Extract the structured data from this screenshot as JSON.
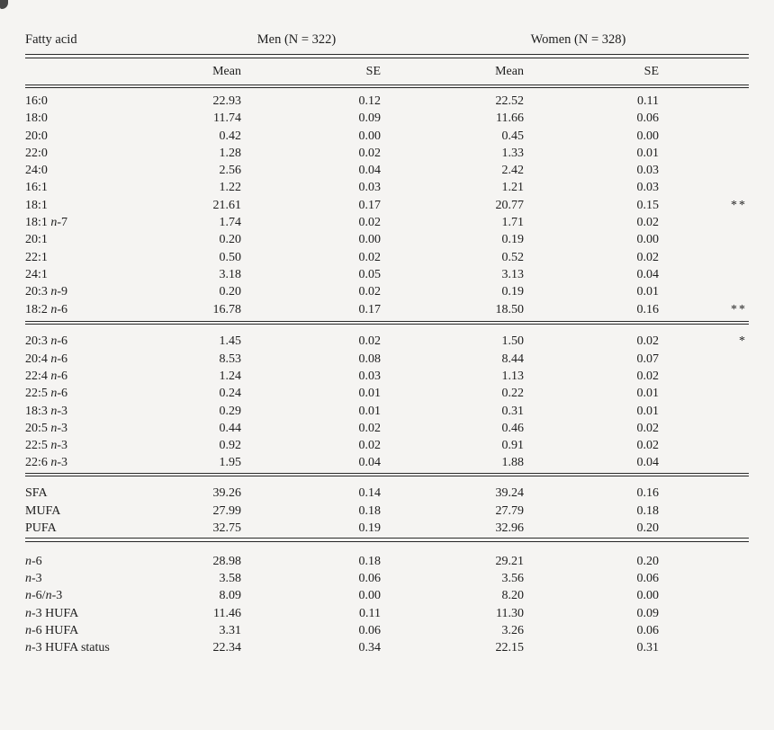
{
  "page": {
    "background": "#f5f4f2",
    "text_color": "#1d1d1d",
    "rule_color": "#2b2b2b"
  },
  "table": {
    "header": {
      "col1": "Fatty acid",
      "groups": [
        {
          "label": "Men (N = 322)"
        },
        {
          "label": "Women (N = 328)"
        }
      ],
      "subheaders": [
        "Mean",
        "SE",
        "Mean",
        "SE"
      ]
    },
    "sections": [
      {
        "rows": [
          {
            "label": [
              [
                "16:0",
                0
              ]
            ],
            "values": [
              "22.93",
              "0.12",
              "22.52",
              "0.11"
            ],
            "sig": ""
          },
          {
            "label": [
              [
                "18:0",
                0
              ]
            ],
            "values": [
              "11.74",
              "0.09",
              "11.66",
              "0.06"
            ],
            "sig": ""
          },
          {
            "label": [
              [
                "20:0",
                0
              ]
            ],
            "values": [
              "0.42",
              "0.00",
              "0.45",
              "0.00"
            ],
            "sig": ""
          },
          {
            "label": [
              [
                "22:0",
                0
              ]
            ],
            "values": [
              "1.28",
              "0.02",
              "1.33",
              "0.01"
            ],
            "sig": ""
          },
          {
            "label": [
              [
                "24:0",
                0
              ]
            ],
            "values": [
              "2.56",
              "0.04",
              "2.42",
              "0.03"
            ],
            "sig": ""
          },
          {
            "label": [
              [
                "16:1",
                0
              ]
            ],
            "values": [
              "1.22",
              "0.03",
              "1.21",
              "0.03"
            ],
            "sig": ""
          },
          {
            "label": [
              [
                "18:1",
                0
              ]
            ],
            "values": [
              "21.61",
              "0.17",
              "20.77",
              "0.15"
            ],
            "sig": "**"
          },
          {
            "label": [
              [
                "18:1 ",
                0
              ],
              [
                "n",
                1
              ],
              [
                "-7",
                0
              ]
            ],
            "values": [
              "1.74",
              "0.02",
              "1.71",
              "0.02"
            ],
            "sig": ""
          },
          {
            "label": [
              [
                "20:1",
                0
              ]
            ],
            "values": [
              "0.20",
              "0.00",
              "0.19",
              "0.00"
            ],
            "sig": ""
          },
          {
            "label": [
              [
                "22:1",
                0
              ]
            ],
            "values": [
              "0.50",
              "0.02",
              "0.52",
              "0.02"
            ],
            "sig": ""
          },
          {
            "label": [
              [
                "24:1",
                0
              ]
            ],
            "values": [
              "3.18",
              "0.05",
              "3.13",
              "0.04"
            ],
            "sig": ""
          },
          {
            "label": [
              [
                "20:3 ",
                0
              ],
              [
                "n",
                1
              ],
              [
                "-9",
                0
              ]
            ],
            "values": [
              "0.20",
              "0.02",
              "0.19",
              "0.01"
            ],
            "sig": ""
          },
          {
            "label": [
              [
                "18:2 ",
                0
              ],
              [
                "n",
                1
              ],
              [
                "-6",
                0
              ]
            ],
            "values": [
              "16.78",
              "0.17",
              "18.50",
              "0.16"
            ],
            "sig": "**"
          }
        ]
      },
      {
        "rows": [
          {
            "label": [
              [
                "20:3 ",
                0
              ],
              [
                "n",
                1
              ],
              [
                "-6",
                0
              ]
            ],
            "values": [
              "1.45",
              "0.02",
              "1.50",
              "0.02"
            ],
            "sig": "*"
          },
          {
            "label": [
              [
                "20:4 ",
                0
              ],
              [
                "n",
                1
              ],
              [
                "-6",
                0
              ]
            ],
            "values": [
              "8.53",
              "0.08",
              "8.44",
              "0.07"
            ],
            "sig": ""
          },
          {
            "label": [
              [
                "22:4 ",
                0
              ],
              [
                "n",
                1
              ],
              [
                "-6",
                0
              ]
            ],
            "values": [
              "1.24",
              "0.03",
              "1.13",
              "0.02"
            ],
            "sig": ""
          },
          {
            "label": [
              [
                "22:5 ",
                0
              ],
              [
                "n",
                1
              ],
              [
                "-6",
                0
              ]
            ],
            "values": [
              "0.24",
              "0.01",
              "0.22",
              "0.01"
            ],
            "sig": ""
          },
          {
            "label": [
              [
                "18:3 ",
                0
              ],
              [
                "n",
                1
              ],
              [
                "-3",
                0
              ]
            ],
            "values": [
              "0.29",
              "0.01",
              "0.31",
              "0.01"
            ],
            "sig": ""
          },
          {
            "label": [
              [
                "20:5 ",
                0
              ],
              [
                "n",
                1
              ],
              [
                "-3",
                0
              ]
            ],
            "values": [
              "0.44",
              "0.02",
              "0.46",
              "0.02"
            ],
            "sig": ""
          },
          {
            "label": [
              [
                "22:5 ",
                0
              ],
              [
                "n",
                1
              ],
              [
                "-3",
                0
              ]
            ],
            "values": [
              "0.92",
              "0.02",
              "0.91",
              "0.02"
            ],
            "sig": ""
          },
          {
            "label": [
              [
                "22:6 ",
                0
              ],
              [
                "n",
                1
              ],
              [
                "-3",
                0
              ]
            ],
            "values": [
              "1.95",
              "0.04",
              "1.88",
              "0.04"
            ],
            "sig": ""
          }
        ]
      },
      {
        "rows": [
          {
            "label": [
              [
                "SFA",
                0
              ]
            ],
            "values": [
              "39.26",
              "0.14",
              "39.24",
              "0.16"
            ],
            "sig": ""
          },
          {
            "label": [
              [
                "MUFA",
                0
              ]
            ],
            "values": [
              "27.99",
              "0.18",
              "27.79",
              "0.18"
            ],
            "sig": ""
          },
          {
            "label": [
              [
                "PUFA",
                0
              ]
            ],
            "values": [
              "32.75",
              "0.19",
              "32.96",
              "0.20"
            ],
            "sig": ""
          }
        ]
      },
      {
        "rows": [
          {
            "label": [
              [
                "n",
                1
              ],
              [
                "-6",
                0
              ]
            ],
            "values": [
              "28.98",
              "0.18",
              "29.21",
              "0.20"
            ],
            "sig": ""
          },
          {
            "label": [
              [
                "n",
                1
              ],
              [
                "-3",
                0
              ]
            ],
            "values": [
              "3.58",
              "0.06",
              "3.56",
              "0.06"
            ],
            "sig": ""
          },
          {
            "label": [
              [
                "n",
                1
              ],
              [
                "-6/",
                0
              ],
              [
                "n",
                1
              ],
              [
                "-3",
                0
              ]
            ],
            "values": [
              "8.09",
              "0.00",
              "8.20",
              "0.00"
            ],
            "sig": ""
          },
          {
            "label": [
              [
                "n",
                1
              ],
              [
                "-3 HUFA",
                0
              ]
            ],
            "values": [
              "11.46",
              "0.11",
              "11.30",
              "0.09"
            ],
            "sig": ""
          },
          {
            "label": [
              [
                "n",
                1
              ],
              [
                "-6 HUFA",
                0
              ]
            ],
            "values": [
              "3.31",
              "0.06",
              "3.26",
              "0.06"
            ],
            "sig": ""
          },
          {
            "label": [
              [
                "n",
                1
              ],
              [
                "-3 HUFA status",
                0
              ]
            ],
            "values": [
              "22.34",
              "0.34",
              "22.15",
              "0.31"
            ],
            "sig": ""
          }
        ]
      }
    ]
  }
}
